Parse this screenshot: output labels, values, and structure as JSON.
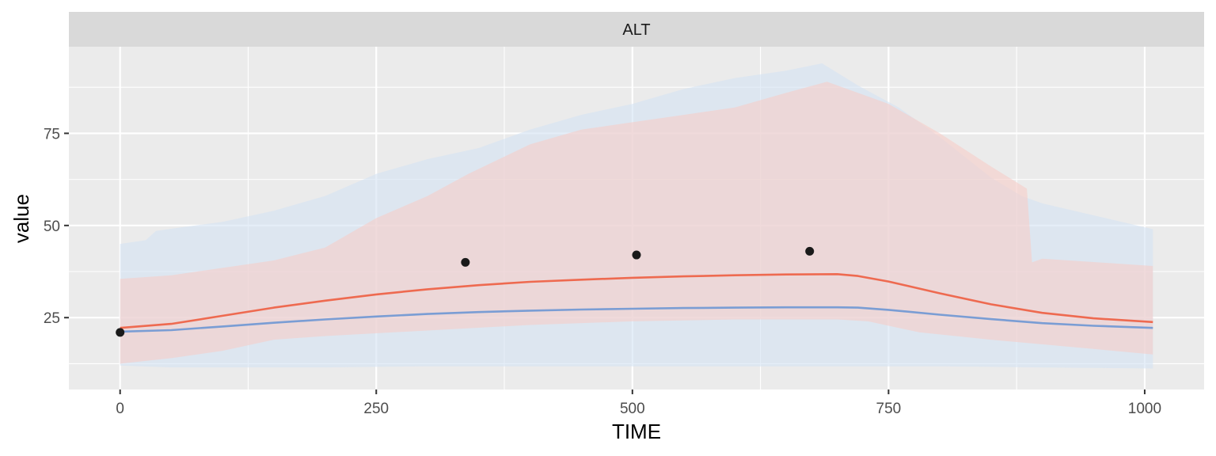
{
  "chart_data": {
    "type": "line",
    "panel_label": "ALT",
    "xlabel": "TIME",
    "ylabel": "value",
    "xlim": [
      -50,
      1058
    ],
    "ylim": [
      5.5,
      98.5
    ],
    "x_ticks": [
      0,
      250,
      500,
      750,
      1000
    ],
    "y_ticks": [
      25,
      50,
      75
    ],
    "grid": true,
    "legend": "none",
    "colors": {
      "panel_bg": "#EBEBEB",
      "strip_bg": "#D9D9D9",
      "grid": "#FFFFFF",
      "blue_line": "#7A9DD4",
      "red_line": "#EE6A50",
      "blue_band": "#D3E3F3",
      "red_band": "#F6CDC8",
      "points": "#1A1A1A"
    },
    "bands": [
      {
        "color_key": "blue_band",
        "upper": [
          [
            0,
            45
          ],
          [
            25,
            46
          ],
          [
            35,
            48.5
          ],
          [
            60,
            49.5
          ],
          [
            100,
            51
          ],
          [
            150,
            54
          ],
          [
            200,
            58
          ],
          [
            250,
            64
          ],
          [
            300,
            68
          ],
          [
            350,
            71
          ],
          [
            400,
            76
          ],
          [
            450,
            80
          ],
          [
            500,
            83
          ],
          [
            550,
            87
          ],
          [
            600,
            90
          ],
          [
            650,
            92
          ],
          [
            685,
            94
          ],
          [
            720,
            88
          ],
          [
            760,
            82
          ],
          [
            800,
            74
          ],
          [
            850,
            63
          ],
          [
            880,
            58
          ],
          [
            900,
            56
          ],
          [
            1008,
            49
          ]
        ],
        "lower": [
          [
            0,
            12
          ],
          [
            50,
            11.5
          ],
          [
            100,
            11.5
          ],
          [
            200,
            11.5
          ],
          [
            300,
            11.8
          ],
          [
            400,
            11.8
          ],
          [
            500,
            11.8
          ],
          [
            600,
            11.8
          ],
          [
            700,
            11.8
          ],
          [
            800,
            11.8
          ],
          [
            900,
            11.5
          ],
          [
            1008,
            11.2
          ]
        ]
      },
      {
        "color_key": "red_band",
        "upper": [
          [
            0,
            35.5
          ],
          [
            50,
            36.5
          ],
          [
            100,
            38.5
          ],
          [
            150,
            40.5
          ],
          [
            200,
            44
          ],
          [
            250,
            52
          ],
          [
            300,
            58
          ],
          [
            340,
            64
          ],
          [
            400,
            72
          ],
          [
            450,
            76
          ],
          [
            500,
            78
          ],
          [
            550,
            80
          ],
          [
            600,
            82
          ],
          [
            650,
            86
          ],
          [
            690,
            89
          ],
          [
            720,
            86
          ],
          [
            750,
            83
          ],
          [
            800,
            75
          ],
          [
            850,
            66
          ],
          [
            885,
            60
          ],
          [
            890,
            40
          ],
          [
            900,
            41
          ],
          [
            1008,
            39
          ]
        ],
        "lower": [
          [
            0,
            12.5
          ],
          [
            50,
            14
          ],
          [
            100,
            16
          ],
          [
            150,
            19
          ],
          [
            200,
            20
          ],
          [
            300,
            21.5
          ],
          [
            400,
            23
          ],
          [
            500,
            24
          ],
          [
            600,
            24.5
          ],
          [
            700,
            24.5
          ],
          [
            730,
            24
          ],
          [
            780,
            21
          ],
          [
            850,
            19
          ],
          [
            950,
            16.5
          ],
          [
            1008,
            15
          ]
        ]
      }
    ],
    "series": [
      {
        "color_key": "red_line",
        "x": [
          0,
          50,
          100,
          150,
          200,
          250,
          300,
          350,
          400,
          450,
          500,
          550,
          600,
          650,
          700,
          720,
          750,
          800,
          850,
          900,
          950,
          1008
        ],
        "y": [
          22.2,
          23.3,
          25.5,
          27.7,
          29.6,
          31.3,
          32.7,
          33.8,
          34.7,
          35.3,
          35.8,
          36.2,
          36.5,
          36.7,
          36.8,
          36.3,
          34.8,
          31.6,
          28.6,
          26.3,
          24.8,
          23.8
        ]
      },
      {
        "color_key": "blue_line",
        "x": [
          0,
          50,
          100,
          150,
          200,
          250,
          300,
          350,
          400,
          450,
          500,
          550,
          600,
          650,
          700,
          720,
          750,
          800,
          850,
          900,
          950,
          1008
        ],
        "y": [
          21.2,
          21.6,
          22.6,
          23.6,
          24.5,
          25.3,
          26.0,
          26.5,
          26.9,
          27.2,
          27.4,
          27.6,
          27.7,
          27.8,
          27.8,
          27.7,
          27.1,
          25.8,
          24.6,
          23.5,
          22.8,
          22.2
        ]
      }
    ],
    "points": {
      "color_key": "points",
      "x": [
        0,
        337,
        504,
        673
      ],
      "y": [
        21,
        40,
        42,
        43
      ]
    }
  }
}
